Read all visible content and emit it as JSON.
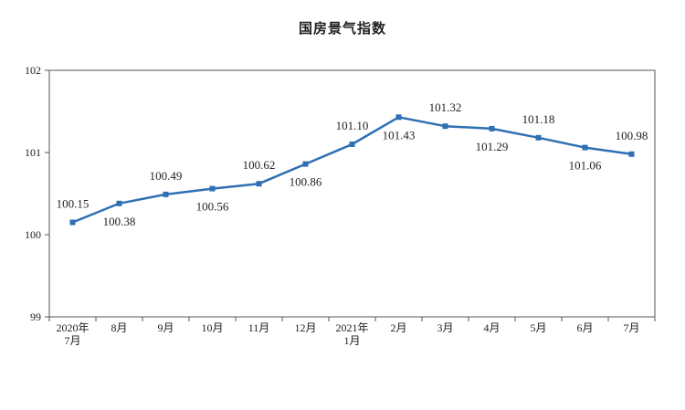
{
  "chart_data": {
    "type": "line",
    "title": "国房景气指数",
    "xlabel": "",
    "ylabel": "",
    "categories": [
      "2020年\n7月",
      "8月",
      "9月",
      "10月",
      "11月",
      "12月",
      "2021年\n1月",
      "2月",
      "3月",
      "4月",
      "5月",
      "6月",
      "7月"
    ],
    "series": [
      {
        "values": [
          100.15,
          100.38,
          100.49,
          100.56,
          100.62,
          100.86,
          101.1,
          101.43,
          101.32,
          101.29,
          101.18,
          101.06,
          100.98
        ],
        "data_labels": [
          "100.15",
          "100.38",
          "100.49",
          "100.56",
          "100.62",
          "100.86",
          "101.10",
          "101.43",
          "101.32",
          "101.29",
          "101.18",
          "101.06",
          "100.98"
        ],
        "color": "#2f6fb3"
      }
    ],
    "ylim": [
      99,
      102
    ],
    "yticks": [
      "99",
      "100",
      "101",
      "102"
    ],
    "grid": false,
    "legend": "none"
  }
}
